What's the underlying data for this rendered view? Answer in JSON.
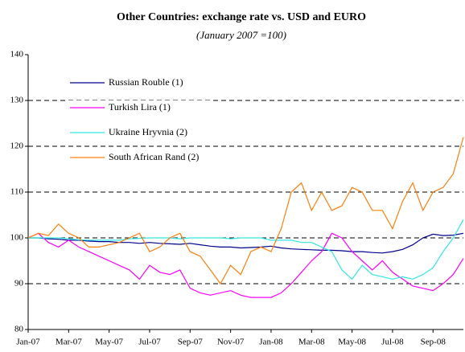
{
  "chart_data": {
    "type": "line",
    "title": "Other Countries: exchange rate vs. USD and EURO",
    "subtitle": "(January  2007 =100)",
    "categories": [
      "Jan-07",
      null,
      null,
      null,
      "Mar-07",
      null,
      null,
      null,
      "May-07",
      null,
      null,
      null,
      "Jul-07",
      null,
      null,
      null,
      "Sep-07",
      null,
      null,
      null,
      "Nov-07",
      null,
      null,
      null,
      "Jan-08",
      null,
      null,
      null,
      "Mar-08",
      null,
      null,
      null,
      "May-08",
      null,
      null,
      null,
      "Jul-08",
      null,
      null,
      null,
      "Sep-08",
      null,
      null,
      null
    ],
    "series": [
      {
        "name": "Russian Rouble (1)",
        "color": "#00008b",
        "values": [
          100,
          100,
          99.8,
          99.7,
          99.5,
          99.5,
          99.3,
          99.2,
          99.2,
          99.0,
          99.0,
          98.8,
          99.0,
          98.8,
          98.7,
          98.6,
          98.8,
          98.5,
          98.2,
          98.0,
          98.0,
          97.8,
          97.9,
          98.0,
          98.2,
          97.8,
          97.6,
          97.5,
          97.4,
          97.3,
          97.3,
          97.2,
          97.0,
          97.0,
          96.8,
          96.7,
          97.0,
          97.5,
          98.5,
          100.0,
          100.8,
          100.5,
          100.6,
          101.0
        ]
      },
      {
        "name": "Turkish Lira (1)",
        "color": "#ff00ff",
        "values": [
          100,
          101,
          99,
          98,
          99.5,
          98,
          97,
          96,
          95,
          94,
          93,
          91,
          94,
          92.5,
          92,
          93,
          89,
          88,
          87.5,
          88,
          88.5,
          87.5,
          87,
          87,
          87,
          88,
          90,
          92.5,
          95,
          97,
          101,
          100,
          97,
          95,
          93,
          95,
          92.5,
          91,
          89.5,
          89,
          88.5,
          90,
          92,
          95.5
        ]
      },
      {
        "name": "Ukraine Hryvnia (2)",
        "color": "#33e6e6",
        "values": [
          100,
          100,
          100,
          100,
          99.8,
          99.6,
          99.5,
          99.5,
          99.5,
          99.5,
          99.8,
          99.9,
          100,
          100,
          100,
          99.8,
          100,
          100,
          100,
          100,
          99.8,
          100,
          100,
          100,
          99.5,
          99.5,
          99.5,
          99,
          99,
          98,
          97,
          93,
          91,
          94,
          92,
          91.5,
          91,
          91.5,
          91,
          92,
          93.5,
          97,
          100,
          104
        ]
      },
      {
        "name": "South African Rand (2)",
        "color": "#ff7f0e",
        "values": [
          100,
          101,
          100.5,
          103,
          101,
          100,
          98,
          98,
          98.5,
          99,
          100,
          101,
          97,
          98,
          100,
          101,
          97,
          96,
          93,
          90,
          94,
          92,
          97,
          98,
          97,
          102,
          110,
          112,
          106,
          110,
          106,
          107,
          111,
          110,
          106,
          106,
          102,
          108,
          112,
          106,
          110,
          111,
          114,
          122
        ]
      }
    ],
    "ylim": [
      80,
      140
    ],
    "yticks": [
      80,
      90,
      100,
      110,
      120,
      130,
      140
    ],
    "grid": true,
    "legend": "upper-left"
  }
}
